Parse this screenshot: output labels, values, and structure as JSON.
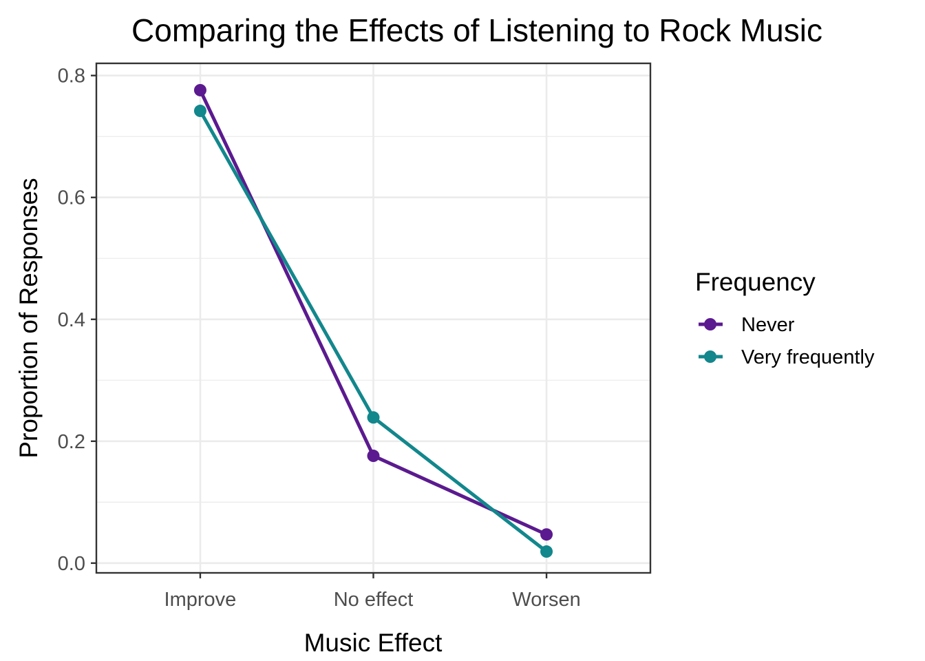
{
  "chart_data": {
    "type": "line",
    "title": "Comparing the Effects of Listening to Rock Music",
    "xlabel": "Music Effect",
    "ylabel": "Proportion of Responses",
    "categories": [
      "Improve",
      "No effect",
      "Worsen"
    ],
    "ylim": [
      -0.016,
      0.82
    ],
    "yticks": [
      0.0,
      0.2,
      0.4,
      0.6,
      0.8
    ],
    "ytick_labels": [
      "0.0",
      "0.2",
      "0.4",
      "0.6",
      "0.8"
    ],
    "grid": true,
    "legend": {
      "title": "Frequency",
      "position": "right"
    },
    "series": [
      {
        "name": "Never",
        "color": "#5b1a8f",
        "values": [
          0.776,
          0.176,
          0.047
        ]
      },
      {
        "name": "Very frequently",
        "color": "#12878c",
        "values": [
          0.742,
          0.239,
          0.019
        ]
      }
    ]
  }
}
